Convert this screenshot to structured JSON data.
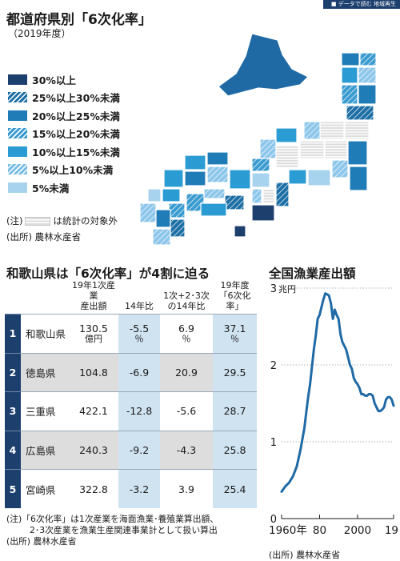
{
  "header": {
    "tag": "■ データで読む 地域再生"
  },
  "map": {
    "title": "都道府県別「6次化率」",
    "subtitle": "（2019年度）",
    "legend": [
      {
        "label": "30%以上",
        "color": "#1d3f6e",
        "pattern": "solid"
      },
      {
        "label": "25%以上30%未満",
        "color": "#1d6fa5",
        "pattern": "hatch"
      },
      {
        "label": "20%以上25%未満",
        "color": "#1f7cb6",
        "pattern": "solid"
      },
      {
        "label": "15%以上20%未満",
        "color": "#3a9bd0",
        "pattern": "hatch"
      },
      {
        "label": "10%以上15%未満",
        "color": "#2a9bd3",
        "pattern": "solid"
      },
      {
        "label": "5%以上10%未満",
        "color": "#79bde5",
        "pattern": "hatch"
      },
      {
        "label": "5%未満",
        "color": "#a7d3ee",
        "pattern": "solid"
      }
    ],
    "note_prefix": "(注)",
    "note_suffix": "は統計の対象外",
    "source": "(出所) 農林水産省"
  },
  "table": {
    "title": "和歌山県は「6次化率」が4割に迫る",
    "headers": {
      "col1": "19年1次産業",
      "col1b": "産出額",
      "col2": "14年比",
      "col3": "1次+2･3次",
      "col3b": "の14年比",
      "col4": "19年度",
      "col4b": "「6次化率」"
    },
    "rows": [
      {
        "rank": "1",
        "pref": "和歌山県",
        "output": "130.5",
        "output_unit": "億円",
        "chg": "-5.5",
        "chg_unit": "％",
        "chg2": "6.9",
        "chg2_unit": "％",
        "rate": "37.1",
        "rate_unit": "％"
      },
      {
        "rank": "2",
        "pref": "徳島県",
        "output": "104.8",
        "chg": "-6.9",
        "chg2": "20.9",
        "rate": "29.5"
      },
      {
        "rank": "3",
        "pref": "三重県",
        "output": "422.1",
        "chg": "-12.8",
        "chg2": "-5.6",
        "rate": "28.7"
      },
      {
        "rank": "4",
        "pref": "広島県",
        "output": "240.3",
        "chg": "-9.2",
        "chg2": "-4.3",
        "rate": "25.8"
      },
      {
        "rank": "5",
        "pref": "宮崎県",
        "output": "322.8",
        "chg": "-3.2",
        "chg2": "3.9",
        "rate": "25.4"
      }
    ],
    "note_line1": "(注)「6次化率」は1次産業を海面漁業･養殖業算出額、",
    "note_line2": "2･3次産業を漁業生産関連事業計として扱い算出",
    "source": "(出所) 農林水産省"
  },
  "chart_data": {
    "type": "line",
    "title": "全国漁業産出額",
    "unit_label": "兆円",
    "ylim": [
      0,
      3
    ],
    "yticks": [
      0,
      1,
      2,
      3
    ],
    "ytick_labels": [
      "0",
      "1",
      "2",
      "3"
    ],
    "xlim": [
      1960,
      2019
    ],
    "xticks": [
      1960,
      1980,
      2000,
      2019
    ],
    "xtick_labels": [
      "1960年",
      "80",
      "2000",
      "19"
    ],
    "grid": "horizontal-dotted",
    "series_color": "#1f6aa5",
    "source": "(出所) 農林水産省",
    "x": [
      1960,
      1962,
      1964,
      1966,
      1968,
      1970,
      1972,
      1973,
      1974,
      1975,
      1976,
      1977,
      1978,
      1979,
      1980,
      1981,
      1982,
      1983,
      1984,
      1985,
      1986,
      1987,
      1988,
      1989,
      1990,
      1991,
      1992,
      1993,
      1994,
      1995,
      1996,
      1997,
      1998,
      1999,
      2000,
      2001,
      2002,
      2003,
      2004,
      2005,
      2006,
      2007,
      2008,
      2009,
      2010,
      2011,
      2012,
      2013,
      2014,
      2015,
      2016,
      2017,
      2018,
      2019
    ],
    "y": [
      0.35,
      0.42,
      0.47,
      0.55,
      0.68,
      0.9,
      1.18,
      1.38,
      1.58,
      1.75,
      1.98,
      2.2,
      2.38,
      2.6,
      2.65,
      2.75,
      2.85,
      2.93,
      2.92,
      2.9,
      2.8,
      2.6,
      2.72,
      2.65,
      2.6,
      2.4,
      2.3,
      2.25,
      2.2,
      2.1,
      2.0,
      1.95,
      1.83,
      1.78,
      1.75,
      1.7,
      1.62,
      1.62,
      1.6,
      1.6,
      1.62,
      1.62,
      1.6,
      1.5,
      1.45,
      1.4,
      1.4,
      1.42,
      1.45,
      1.55,
      1.58,
      1.58,
      1.55,
      1.47
    ]
  }
}
